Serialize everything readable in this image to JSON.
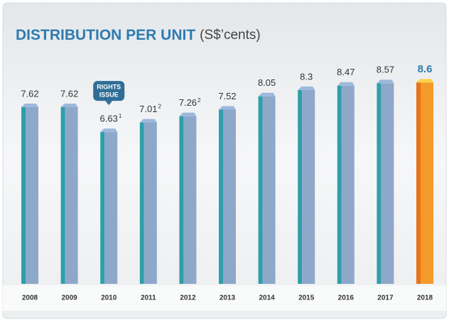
{
  "chart_data": {
    "type": "bar",
    "title": "DISTRIBUTION PER UNIT",
    "unit": "(S$’cents)",
    "categories": [
      "2008",
      "2009",
      "2010",
      "2011",
      "2012",
      "2013",
      "2014",
      "2015",
      "2016",
      "2017",
      "2018"
    ],
    "values": [
      7.62,
      7.62,
      6.63,
      7.01,
      7.26,
      7.52,
      8.05,
      8.3,
      8.47,
      8.57,
      8.6
    ],
    "footnotes": [
      null,
      null,
      "1",
      "2",
      "2",
      null,
      null,
      null,
      null,
      null,
      null
    ],
    "colors": [
      "#8ea8c9",
      "#8ea8c9",
      "#8ea8c9",
      "#8ea8c9",
      "#8ea8c9",
      "#8ea8c9",
      "#8ea8c9",
      "#8ea8c9",
      "#8ea8c9",
      "#8ea8c9",
      "#f39a2a"
    ],
    "highlight_color": "#f39a2a",
    "ylim": [
      0.6,
      9.0
    ],
    "annotation": {
      "lines": [
        "RIGHTS",
        "ISSUE"
      ],
      "category": "2010"
    }
  }
}
